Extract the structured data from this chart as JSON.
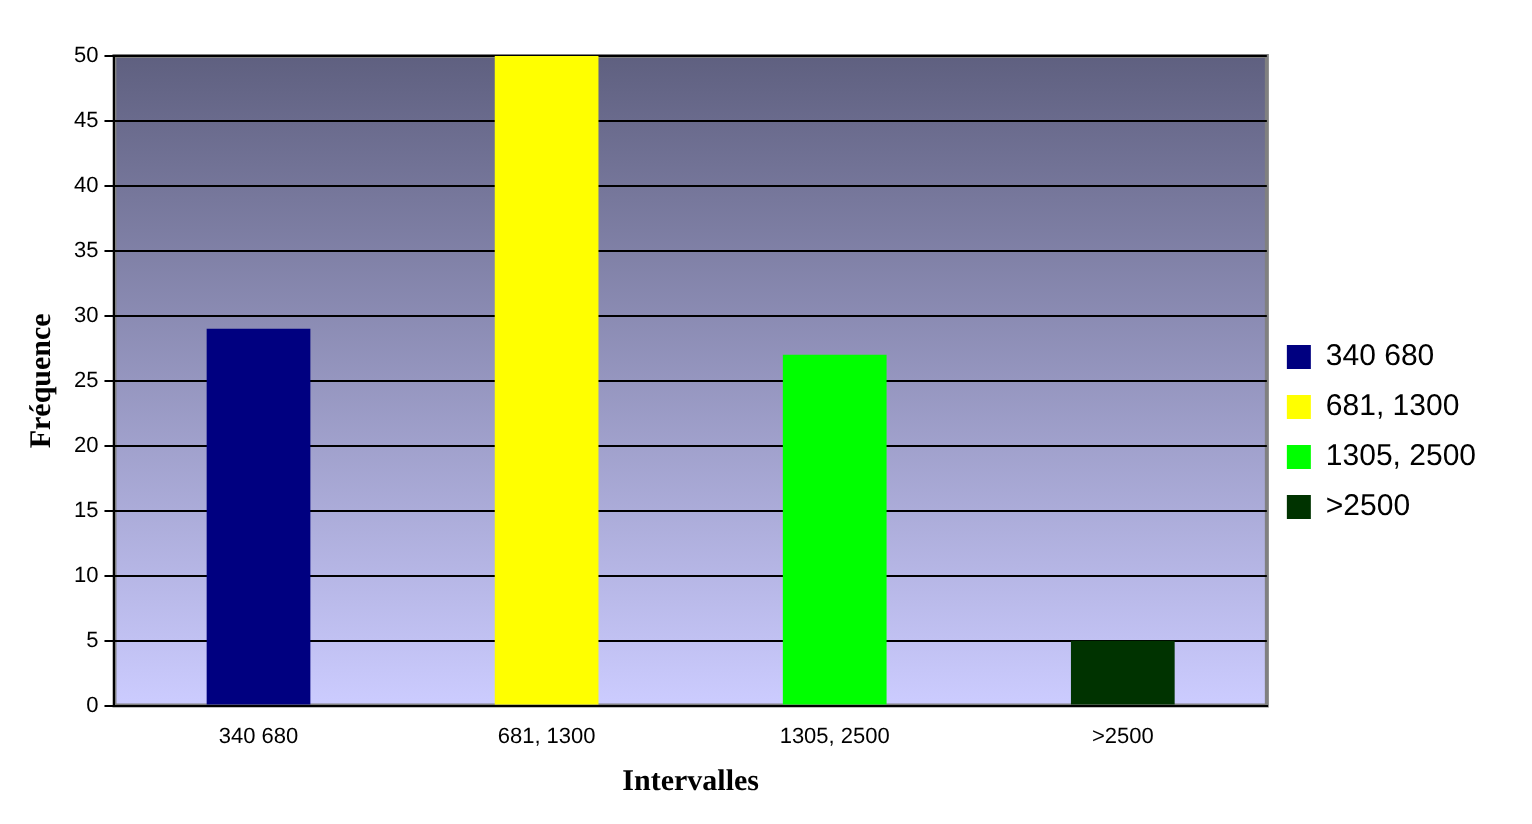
{
  "chart_data": {
    "type": "bar",
    "xlabel": "Intervalles",
    "ylabel": "Fréquence",
    "categories": [
      "340 680",
      "681, 1300",
      "1305, 2500",
      ">2500"
    ],
    "series": [
      {
        "name": "340 680",
        "color": "#000080",
        "values": [
          29,
          null,
          null,
          null
        ]
      },
      {
        "name": "681, 1300",
        "color": "#ffff00",
        "values": [
          null,
          50,
          null,
          null
        ]
      },
      {
        "name": "1305, 2500",
        "color": "#00ff00",
        "values": [
          null,
          null,
          27,
          null
        ]
      },
      {
        "name": ">2500",
        "color": "#003300",
        "values": [
          null,
          null,
          null,
          5
        ]
      }
    ],
    "ylim": [
      0,
      50
    ],
    "yticks": [
      0,
      5,
      10,
      15,
      20,
      25,
      30,
      35,
      40,
      45,
      50
    ],
    "grid": "y",
    "legend": "right"
  }
}
